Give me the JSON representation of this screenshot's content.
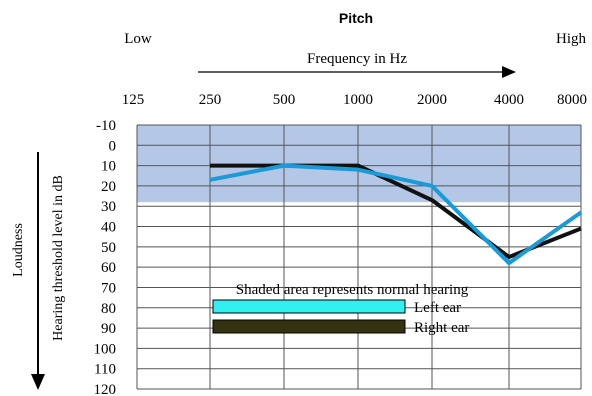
{
  "chart_data": {
    "type": "line",
    "title": "Pitch",
    "low_label": "Low",
    "high_label": "High",
    "xlabel": "Frequency in Hz",
    "ylabel": "Hearing threshold level in dB",
    "side_label": "Loudness",
    "x": [
      125,
      250,
      500,
      1000,
      2000,
      4000,
      8000
    ],
    "x_tick_labels": [
      "125",
      "250",
      "500",
      "1000",
      "2000",
      "4000",
      "8000"
    ],
    "y_ticks": [
      -10,
      0,
      10,
      20,
      30,
      40,
      50,
      60,
      70,
      80,
      90,
      100,
      110,
      120
    ],
    "ylim": [
      -10,
      120
    ],
    "y_inverted": true,
    "x_scale": "log",
    "grid": true,
    "normal_band": {
      "from": -10,
      "to": 28,
      "color": "#b4c7e7"
    },
    "annotation": "Shaded area represents normal hearing",
    "legend_placement": "center",
    "series": [
      {
        "name": "Left ear",
        "color": "#1a9bd7",
        "legend_color": "#33f0f0",
        "x": [
          250,
          500,
          1000,
          2000,
          4000,
          8000
        ],
        "values": [
          17,
          10,
          12,
          20,
          58,
          33
        ]
      },
      {
        "name": "Right ear",
        "color": "#111111",
        "legend_color": "#333311",
        "x": [
          250,
          500,
          1000,
          2000,
          4000,
          8000
        ],
        "values": [
          10,
          10,
          10,
          27,
          55,
          41
        ]
      }
    ]
  }
}
